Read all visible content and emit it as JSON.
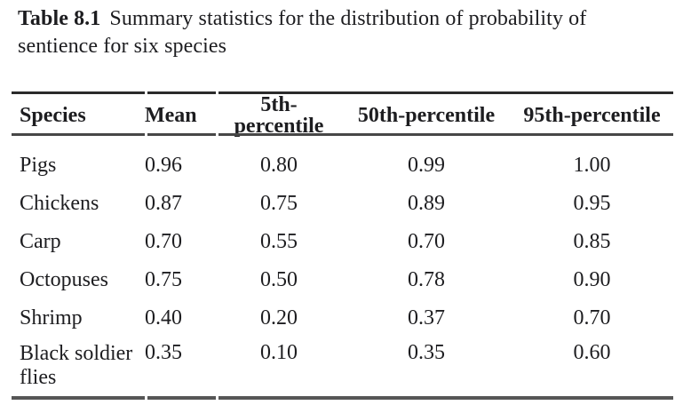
{
  "caption": {
    "label": "Table 8.1",
    "line1": "Summary statistics for the distribution of probability of",
    "line2": "sentience for six species"
  },
  "table": {
    "columns": [
      "Species",
      "Mean",
      "5th-percentile",
      "50th-percentile",
      "95th-percentile"
    ],
    "rows": [
      {
        "species": "Pigs",
        "mean": "0.96",
        "p5": "0.80",
        "p50": "0.99",
        "p95": "1.00"
      },
      {
        "species": "Chickens",
        "mean": "0.87",
        "p5": "0.75",
        "p50": "0.89",
        "p95": "0.95"
      },
      {
        "species": "Carp",
        "mean": "0.70",
        "p5": "0.55",
        "p50": "0.70",
        "p95": "0.85"
      },
      {
        "species": "Octopuses",
        "mean": "0.75",
        "p5": "0.50",
        "p50": "0.78",
        "p95": "0.90"
      },
      {
        "species": "Shrimp",
        "mean": "0.40",
        "p5": "0.20",
        "p50": "0.37",
        "p95": "0.70"
      },
      {
        "species": "Black soldier flies",
        "mean": "0.35",
        "p5": "0.10",
        "p50": "0.35",
        "p95": "0.60"
      }
    ]
  },
  "colors": {
    "text": "#1d1d20",
    "rule_top": "#2b2b2b",
    "rule_mid": "#474747",
    "rule_bottom": "#565656",
    "background": "#ffffff"
  }
}
